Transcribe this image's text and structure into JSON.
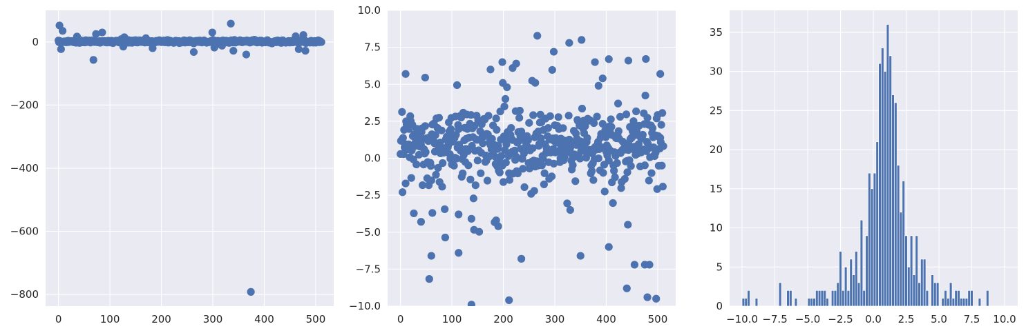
{
  "chart_data": [
    {
      "type": "scatter",
      "xlim": [
        -25,
        535
      ],
      "ylim": [
        -837,
        100
      ],
      "grid": true,
      "xticks": [
        0,
        100,
        200,
        300,
        400,
        500
      ],
      "yticks": [
        0,
        -200,
        -400,
        -600,
        -800
      ],
      "xtick_labels": [
        "0",
        "100",
        "200",
        "300",
        "400",
        "500"
      ],
      "ytick_labels": [
        "0",
        "−200",
        "−400",
        "−600",
        "−800"
      ],
      "color": "#4c72b0",
      "n_points": 512,
      "notable_points": [
        [
          2,
          52
        ],
        [
          5,
          -23
        ],
        [
          8,
          35
        ],
        [
          36,
          17
        ],
        [
          68,
          -57
        ],
        [
          73,
          25
        ],
        [
          85,
          30
        ],
        [
          128,
          15
        ],
        [
          126,
          -15
        ],
        [
          170,
          12
        ],
        [
          183,
          -20
        ],
        [
          263,
          -32
        ],
        [
          299,
          30
        ],
        [
          303,
          -18
        ],
        [
          318,
          -12
        ],
        [
          335,
          58
        ],
        [
          340,
          -28
        ],
        [
          365,
          -40
        ],
        [
          374,
          -792
        ],
        [
          461,
          18
        ],
        [
          467,
          -23
        ],
        [
          476,
          22
        ],
        [
          480,
          -28
        ],
        [
          505,
          5
        ]
      ]
    },
    {
      "type": "scatter",
      "xlim": [
        -25,
        535
      ],
      "ylim": [
        -10,
        10
      ],
      "grid": true,
      "xticks": [
        0,
        100,
        200,
        300,
        400,
        500
      ],
      "yticks": [
        -10,
        -7.5,
        -5,
        -2.5,
        0,
        2.5,
        5,
        7.5,
        10
      ],
      "xtick_labels": [
        "0",
        "100",
        "200",
        "300",
        "400",
        "500"
      ],
      "ytick_labels": [
        "−10.0",
        "−7.5",
        "−5.0",
        "−2.5",
        "0.0",
        "2.5",
        "5.0",
        "7.5",
        "10.0"
      ],
      "color": "#4c72b0",
      "n_points": 512,
      "notable_points": [
        [
          10,
          5.7
        ],
        [
          48,
          5.45
        ],
        [
          40,
          -4.3
        ],
        [
          60,
          -6.6
        ],
        [
          62,
          -3.7
        ],
        [
          113,
          -6.4
        ],
        [
          113,
          -3.8
        ],
        [
          138,
          -9.9
        ],
        [
          175,
          6.0
        ],
        [
          186,
          -4.2
        ],
        [
          190,
          -4.6
        ],
        [
          198,
          6.5
        ],
        [
          207,
          4.8
        ],
        [
          211,
          -9.6
        ],
        [
          218,
          6.1
        ],
        [
          225,
          6.4
        ],
        [
          235,
          -6.8
        ],
        [
          262,
          5.1
        ],
        [
          298,
          7.2
        ],
        [
          328,
          7.8
        ],
        [
          352,
          8.0
        ],
        [
          350,
          -6.6
        ],
        [
          378,
          6.5
        ],
        [
          393,
          5.4
        ],
        [
          405,
          6.7
        ],
        [
          405,
          -6.0
        ],
        [
          440,
          -8.8
        ],
        [
          443,
          6.6
        ],
        [
          455,
          -7.2
        ],
        [
          475,
          -7.2
        ],
        [
          480,
          -9.4
        ],
        [
          484,
          -7.2
        ],
        [
          497,
          -9.5
        ],
        [
          505,
          5.7
        ],
        [
          330,
          -3.5
        ],
        [
          385,
          4.9
        ]
      ]
    },
    {
      "type": "bar",
      "subtype": "histogram",
      "xlim": [
        -10.95,
        11.0
      ],
      "ylim": [
        0,
        37.8
      ],
      "grid": true,
      "bin_start": -10.0,
      "bin_width": 0.2,
      "counts": [
        1,
        1,
        2,
        0,
        0,
        1,
        0,
        0,
        0,
        0,
        0,
        0,
        0,
        0,
        3,
        0,
        0,
        2,
        2,
        0,
        1,
        0,
        0,
        0,
        0,
        1,
        1,
        1,
        2,
        2,
        2,
        2,
        1,
        0,
        2,
        2,
        3,
        7,
        2,
        5,
        2,
        6,
        4,
        7,
        3,
        11,
        2,
        9,
        17,
        15,
        17,
        21,
        31,
        33,
        30,
        36,
        32,
        27,
        26,
        18,
        12,
        16,
        9,
        5,
        9,
        4,
        9,
        3,
        6,
        6,
        2,
        0,
        4,
        3,
        3,
        0,
        1,
        2,
        1,
        3,
        1,
        2,
        2,
        1,
        1,
        1,
        2,
        2,
        0,
        0,
        1,
        0,
        0,
        2,
        0,
        0,
        0,
        0,
        0,
        0,
        0
      ],
      "xticks": [
        -10,
        -7.5,
        -5,
        -2.5,
        0,
        2.5,
        5,
        7.5,
        10
      ],
      "yticks": [
        0,
        5,
        10,
        15,
        20,
        25,
        30,
        35
      ],
      "xtick_labels": [
        "−10.0",
        "−7.5",
        "−5.0",
        "−2.5",
        "0.0",
        "2.5",
        "5.0",
        "7.5",
        "10.0"
      ],
      "ytick_labels": [
        "0",
        "5",
        "10",
        "15",
        "20",
        "25",
        "30",
        "35"
      ],
      "color": "#4c72b0"
    }
  ]
}
